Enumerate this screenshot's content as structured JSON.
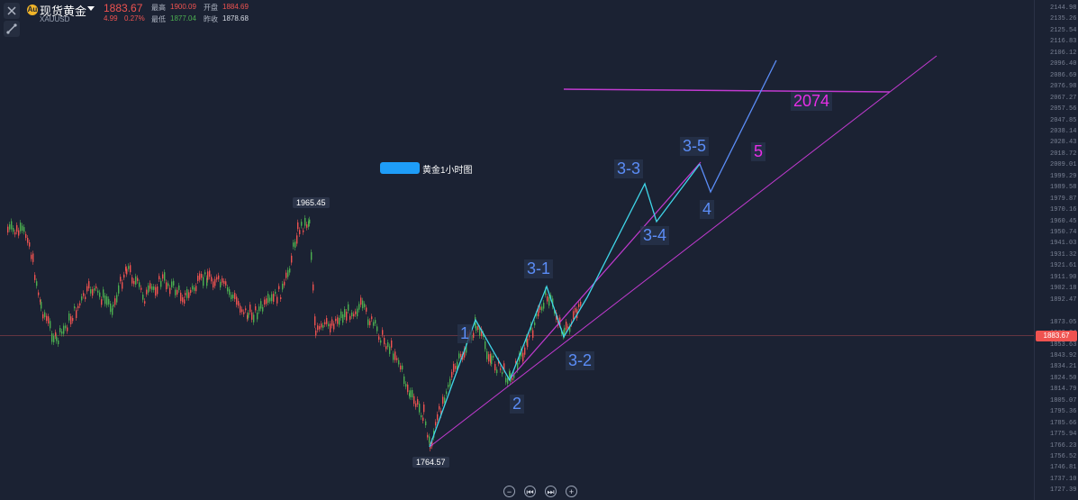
{
  "header": {
    "logo_glyph": "Au",
    "title": "现货黄金",
    "symbol": "XAUUSD",
    "price": "1883.67",
    "change": "4.99",
    "change_pct": "0.27%",
    "high_label": "最高",
    "high_value": "1900.09",
    "open_label": "开盘",
    "open_value": "1884.69",
    "low_label": "最低",
    "low_value": "1877.04",
    "prev_close_label": "昨收",
    "prev_close_value": "1878.68"
  },
  "toolbar": {
    "close_icon": "close-icon",
    "draw_icon": "draw-tool-icon"
  },
  "price_axis": {
    "ticks": [
      "2144.98",
      "2135.26",
      "2125.54",
      "2116.83",
      "2106.12",
      "2096.40",
      "2086.69",
      "2076.98",
      "2067.27",
      "2057.56",
      "2047.85",
      "2038.14",
      "2028.43",
      "2018.72",
      "2009.01",
      "1999.29",
      "1989.58",
      "1979.87",
      "1970.16",
      "1960.45",
      "1950.74",
      "1941.03",
      "1931.32",
      "1921.61",
      "1911.90",
      "1902.18",
      "1892.47",
      "1883.67",
      "1873.05",
      "1863.34",
      "1853.63",
      "1843.92",
      "1834.21",
      "1824.50",
      "1814.79",
      "1805.07",
      "1795.36",
      "1785.66",
      "1775.94",
      "1766.23",
      "1756.52",
      "1746.81",
      "1737.10",
      "1727.39"
    ],
    "current_tag": "1883.67"
  },
  "chart_data": {
    "type": "candlestick",
    "title": "",
    "legend_label": "黄金1小时图",
    "annotations": {
      "high_marker": "1965.45",
      "low_marker": "1764.57",
      "target": "2074",
      "waves": [
        "1",
        "2",
        "3-1",
        "3-2",
        "3-3",
        "3-4",
        "3-5",
        "4",
        "5"
      ]
    },
    "ylim": [
      1727.39,
      2144.98
    ]
  },
  "navigation": {
    "zoom_out": "−",
    "rewind": "⏮",
    "forward": "⏭",
    "zoom_in": "+"
  },
  "colors": {
    "up": "#4caf50",
    "down": "#ef5350",
    "wave_cyan": "#3fd5e8",
    "wave_blue": "#5b8df7",
    "trend_magenta": "#c13ad0",
    "background": "#1b2233"
  }
}
